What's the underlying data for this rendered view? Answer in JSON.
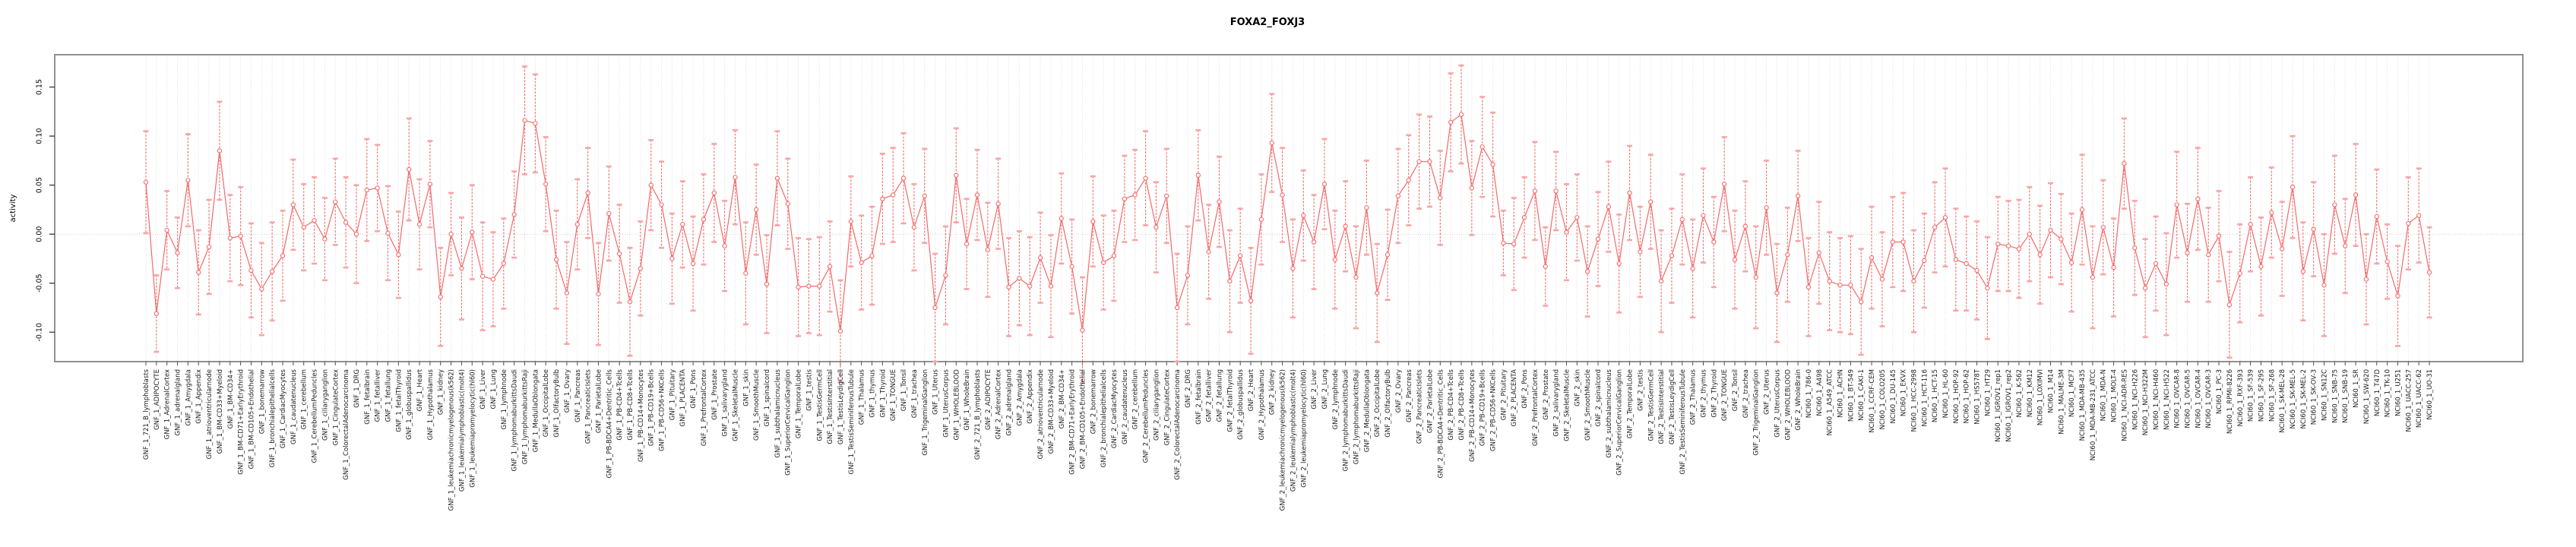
{
  "chart_data": {
    "type": "line",
    "subtype": "point-error-bar-series",
    "title": "FOXA2_FOXJ3",
    "xlabel": "",
    "ylabel": "activity",
    "ylim": [
      -0.13,
      0.183
    ],
    "y_ticks": [
      0.15,
      0.1,
      0.05,
      0.0,
      -0.05,
      -0.1
    ],
    "grid": "vertical dotted gridline at every category, dotted horizontal zero line",
    "legend": "none",
    "colors": {
      "series": "#f46969",
      "error_cap": "#f8a5a5",
      "gridline": "#dedede",
      "zero_line": "#cccccc",
      "frame": "#919191",
      "tick": "#4d4d4d"
    },
    "categories": [
      "GNF_1_721_B_lymphoblasts",
      "GNF_1_ADIPOCYTE",
      "GNF_1_AdrenalCortex",
      "GNF_1_adrenalgland",
      "GNF_1_Amygdala",
      "GNF_1_Appendix",
      "GNF_1_atrioventricularnode",
      "GNF_1_BM-CD33+Myeloid",
      "GNF_1_BM-CD34+",
      "GNF_1_BM-CD71+EarlyErythroid",
      "GNF_1_BM-CD105+Endothelial",
      "GNF_1_bonemarrow",
      "GNF_1_bronchialepithelialcells",
      "GNF_1_CardiacMyocytes",
      "GNF_1_caudatenucleus",
      "GNF_1_cerebellum",
      "GNF_1_CerebellumPeduncles",
      "GNF_1_ciliaryganglion",
      "GNF_1_CingulateCortex",
      "GNF_1_ColorectalAdenocarcinoma",
      "GNF_1_DRG",
      "GNF_1_fetalbrain",
      "GNF_1_fetalliver",
      "GNF_1_fetallung",
      "GNF_1_fetalThyroid",
      "GNF_1_globuspallidus",
      "GNF_1_Heart",
      "GNF_1_Hypothalamus",
      "GNF_1_kidney",
      "GNF_1_leukemiachronicmyelogenous(k562)",
      "GNF_1_leukemialymphoblastic(molt4)",
      "GNF_1_leukemiapromyelocytic(hl60)",
      "GNF_1_Liver",
      "GNF_1_Lung",
      "GNF_1_lymphnode",
      "GNF_1_lymphomaburkittsDaudi",
      "GNF_1_lymphomaburkittsRaji",
      "GNF_1_MedullaOblongata",
      "GNF_1_OccipitalLobe",
      "GNF_1_OlfactoryBulb",
      "GNF_1_Ovary",
      "GNF_1_Pancreas",
      "GNF_1_PancreaticIslets",
      "GNF_1_ParietalLobe",
      "GNF_1_PB-BDCA4+Dentritic_Cells",
      "GNF_1_PB-CD4+Tcells",
      "GNF_1_PB-CD8+Tcells",
      "GNF_1_PB-CD14+Monocytes",
      "GNF_1_PB-CD19+Bcells",
      "GNF_1_PB-CD56+NKCells",
      "GNF_1_Pituitary",
      "GNF_1_PLACENTA",
      "GNF_1_Pons",
      "GNF_1_PrefrontalCortex",
      "GNF_1_Prostate",
      "GNF_1_salivarygland",
      "GNF_1_SkeletalMuscle",
      "GNF_1_skin",
      "GNF_1_SmoothMuscle",
      "GNF_1_spinalcord",
      "GNF_1_subthalamicnucleus",
      "GNF_1_SuperiorCervicalGanglion",
      "GNF_1_TemporalLobe",
      "GNF_1_testis",
      "GNF_1_TestisGermCell",
      "GNF_1_TestisInterstitial",
      "GNF_1_TestisLeydigCell",
      "GNF_1_TestisSeminiferousTubule",
      "GNF_1_Thalamus",
      "GNF_1_thymus",
      "GNF_1_Thyroid",
      "GNF_1_TONGUE",
      "GNF_1_Tonsil",
      "GNF_1_trachea",
      "GNF_1_TrigeminalGanglion",
      "GNF_1_Uterus",
      "GNF_1_UterusCorpus",
      "GNF_1_WHOLEBLOOD",
      "GNF_1_WholeBrain",
      "GNF_2_721_B_lymphoblasts",
      "GNF_2_ADIPOCYTE",
      "GNF_2_AdrenalCortex",
      "GNF_2_adrenalgland",
      "GNF_2_Amygdala",
      "GNF_2_Appendix",
      "GNF_2_atrioventricularnode",
      "GNF_2_BM-CD33+Myeloid",
      "GNF_2_BM-CD34+",
      "GNF_2_BM-CD71+EarlyErythroid",
      "GNF_2_BM-CD105+Endothelial",
      "GNF_2_bonemarrow",
      "GNF_2_bronchialepithelialcells",
      "GNF_2_CardiacMyocytes",
      "GNF_2_caudatenucleus",
      "GNF_2_cerebellum",
      "GNF_2_CerebellumPeduncles",
      "GNF_2_ciliaryganglion",
      "GNF_2_CingulateCortex",
      "GNF_2_ColorectalAdenocarcinoma",
      "GNF_2_DRG",
      "GNF_2_fetalbrain",
      "GNF_2_fetalliver",
      "GNF_2_fetallung",
      "GNF_2_fetalThyroid",
      "GNF_2_globuspallidus",
      "GNF_2_Heart",
      "GNF_2_Hypothalamus",
      "GNF_2_kidney",
      "GNF_2_leukemiachronicmyelogenous(k562)",
      "GNF_2_leukemialymphoblastic(molt4)",
      "GNF_2_leukemiapromyelocytic(hl60)",
      "GNF_2_Liver",
      "GNF_2_Lung",
      "GNF_2_lymphnode",
      "GNF_2_lymphomaburkittsDaudi",
      "GNF_2_lymphomaburkittsRaji",
      "GNF_2_MedullaOblongata",
      "GNF_2_OccipitalLobe",
      "GNF_2_OlfactoryBulb",
      "GNF_2_Ovary",
      "GNF_2_Pancreas",
      "GNF_2_PancreaticIslets",
      "GNF_2_ParietalLobe",
      "GNF_2_PB-BDCA4+Dentritic_Cells",
      "GNF_2_PB-CD4+Tcells",
      "GNF_2_PB-CD8+Tcells",
      "GNF_2_PB-CD14+Monocytes",
      "GNF_2_PB-CD19+Bcells",
      "GNF_2_PB-CD56+NKCells",
      "GNF_2_Pituitary",
      "GNF_2_PLACENTA",
      "GNF_2_Pons",
      "GNF_2_PrefrontalCortex",
      "GNF_2_Prostate",
      "GNF_2_salivarygland",
      "GNF_2_SkeletalMuscle",
      "GNF_2_skin",
      "GNF_2_SmoothMuscle",
      "GNF_2_spinalcord",
      "GNF_2_subthalamicnucleus",
      "GNF_2_SuperiorCervicalGanglion",
      "GNF_2_TemporalLobe",
      "GNF_2_testis",
      "GNF_2_TestisGermCell",
      "GNF_2_TestisInterstitial",
      "GNF_2_TestisLeydigCell",
      "GNF_2_TestisSeminiferousTubule",
      "GNF_2_Thalamus",
      "GNF_2_thymus",
      "GNF_2_Thyroid",
      "GNF_2_TONGUE",
      "GNF_2_Tonsil",
      "GNF_2_trachea",
      "GNF_2_TrigeminalGanglion",
      "GNF_2_Uterus",
      "GNF_2_UterusCorpus",
      "GNF_2_WHOLEBLOOD",
      "GNF_2_WholeBrain",
      "NCI60_1_786-0",
      "NCI60_1_A498",
      "NCI60_1_A549_ATCC",
      "NCI60_1_ACHN",
      "NCI60_1_BT-549",
      "NCI60_1_CAKI-1",
      "NCI60_1_CCRF-CEM",
      "NCI60_1_COLO205",
      "NCI60_1_DU-145",
      "NCI60_1_EKVX",
      "NCI60_1_HCC-2998",
      "NCI60_1_HCT-116",
      "NCI60_1_HCT-15",
      "NCI60_1_HL-60",
      "NCI60_1_HOP-92",
      "NCI60_1_HOP-62",
      "NCI60_1_HS578T",
      "NCI60_1_HT29",
      "NCI60_1_IGROV1_rep1",
      "NCI60_1_IGROV1_rep2",
      "NCI60_1_K-562",
      "NCI60_1_KM12",
      "NCI60_1_LOXIMVI",
      "NCI60_1_M14",
      "NCI60_1_MALME-3M",
      "NCI60_1_MCF7",
      "NCI60_1_MDA-MB-435",
      "NCI60_1_MDA-MB-231_ATCC",
      "NCI60_1_MDA-N",
      "NCI60_1_MOLT-4",
      "NCI60_1_NCI-ADR-RES",
      "NCI60_1_NCI-H226",
      "NCI60_1_NCI-H322M",
      "NCI60_1_NCI-H460",
      "NCI60_1_NCI-H522",
      "NCI60_1_OVCAR-8",
      "NCI60_1_OVCAR-5",
      "NCI60_1_OVCAR-4",
      "NCI60_1_OVCAR-3",
      "NCI60_1_PC-3",
      "NCI60_1_RPMI-8226",
      "NCI60_1_RXF-393",
      "NCI60_1_SF-539",
      "NCI60_1_SF-295",
      "NCI60_1_SF-268",
      "NCI60_1_SK-MEL-28",
      "NCI60_1_SK-MEL-5",
      "NCI60_1_SK-MEL-2",
      "NCI60_1_SK-OV-3",
      "NCI60_1_SN12C",
      "NCI60_1_SNB-75",
      "NCI60_1_SNB-19",
      "NCI60_1_SR",
      "NCI60_1_SW-620",
      "NCI60_1_T47D",
      "NCI60_1_TK-10",
      "NCI60_1_U251",
      "NCI60_1_UACC-257",
      "NCI60_1_UACC-62",
      "NCI60_1_UO-31"
    ],
    "values": [
      0.053,
      -0.081,
      0.004,
      -0.019,
      0.055,
      -0.039,
      -0.013,
      0.085,
      -0.004,
      -0.002,
      -0.037,
      -0.056,
      -0.038,
      -0.022,
      0.03,
      0.007,
      0.014,
      -0.005,
      0.033,
      0.012,
      0.0,
      0.045,
      0.047,
      0.001,
      -0.021,
      0.066,
      0.01,
      0.051,
      -0.064,
      0.0,
      -0.035,
      0.002,
      -0.043,
      -0.046,
      -0.03,
      0.02,
      0.116,
      0.113,
      0.051,
      -0.026,
      -0.06,
      0.01,
      0.042,
      -0.061,
      0.021,
      -0.02,
      -0.069,
      -0.035,
      0.05,
      0.03,
      -0.025,
      0.01,
      -0.03,
      0.015,
      0.042,
      -0.012,
      0.058,
      -0.04,
      0.025,
      -0.051,
      0.057,
      0.031,
      -0.054,
      -0.053,
      -0.053,
      -0.033,
      -0.099,
      0.013,
      -0.029,
      -0.022,
      0.036,
      0.04,
      0.057,
      0.007,
      0.039,
      -0.075,
      -0.042,
      0.06,
      -0.01,
      0.04,
      -0.016,
      0.031,
      -0.054,
      -0.045,
      -0.053,
      -0.024,
      -0.053,
      0.016,
      -0.033,
      -0.098,
      0.013,
      -0.029,
      -0.022,
      0.036,
      0.04,
      0.057,
      0.007,
      0.039,
      -0.075,
      -0.042,
      0.06,
      -0.018,
      0.033,
      -0.048,
      -0.022,
      -0.068,
      0.015,
      0.093,
      0.04,
      -0.035,
      0.019,
      -0.008,
      0.051,
      -0.026,
      0.008,
      -0.044,
      0.027,
      -0.06,
      -0.021,
      0.039,
      0.055,
      0.074,
      0.074,
      0.037,
      0.114,
      0.122,
      0.047,
      0.089,
      0.071,
      -0.009,
      -0.01,
      0.017,
      0.044,
      -0.033,
      0.044,
      0.002,
      0.017,
      -0.038,
      -0.005,
      0.028,
      -0.03,
      0.042,
      -0.018,
      0.033,
      -0.048,
      -0.022,
      0.015,
      -0.035,
      0.019,
      -0.008,
      0.051,
      -0.026,
      0.008,
      -0.044,
      0.027,
      -0.06,
      -0.021,
      0.039,
      -0.054,
      -0.019,
      -0.048,
      -0.052,
      -0.052,
      -0.069,
      -0.024,
      -0.046,
      -0.008,
      -0.008,
      -0.048,
      -0.027,
      0.007,
      0.017,
      -0.026,
      -0.03,
      -0.037,
      -0.055,
      -0.01,
      -0.012,
      -0.015,
      0.0,
      -0.021,
      0.004,
      -0.005,
      -0.029,
      0.025,
      -0.044,
      0.007,
      -0.034,
      0.072,
      -0.014,
      -0.055,
      -0.03,
      -0.051,
      0.03,
      -0.019,
      0.036,
      -0.021,
      -0.002,
      -0.072,
      -0.04,
      0.01,
      -0.033,
      0.022,
      -0.015,
      0.048,
      -0.038,
      0.005,
      -0.052,
      0.03,
      -0.012,
      0.04,
      -0.046,
      0.018,
      -0.028,
      -0.063,
      0.011,
      0.019,
      -0.039
    ],
    "errors": [
      0.052,
      0.039,
      0.04,
      0.036,
      0.047,
      0.043,
      0.048,
      0.05,
      0.044,
      0.05,
      0.048,
      0.047,
      0.05,
      0.046,
      0.046,
      0.044,
      0.044,
      0.042,
      0.044,
      0.046,
      0.05,
      0.052,
      0.044,
      0.048,
      0.044,
      0.052,
      0.046,
      0.044,
      0.05,
      0.042,
      0.052,
      0.048,
      0.055,
      0.048,
      0.046,
      0.044,
      0.055,
      0.05,
      0.048,
      0.05,
      0.052,
      0.046,
      0.046,
      0.052,
      0.048,
      0.05,
      0.055,
      0.048,
      0.046,
      0.044,
      0.046,
      0.044,
      0.048,
      0.046,
      0.05,
      0.046,
      0.048,
      0.052,
      0.046,
      0.05,
      0.048,
      0.046,
      0.05,
      0.048,
      0.05,
      0.046,
      0.052,
      0.046,
      0.048,
      0.05,
      0.046,
      0.048,
      0.046,
      0.044,
      0.048,
      0.055,
      0.05,
      0.048,
      0.046,
      0.046,
      0.048,
      0.046,
      0.05,
      0.048,
      0.05,
      0.046,
      0.052,
      0.046,
      0.048,
      0.054,
      0.046,
      0.048,
      0.046,
      0.044,
      0.046,
      0.048,
      0.046,
      0.048,
      0.055,
      0.05,
      0.046,
      0.048,
      0.046,
      0.052,
      0.048,
      0.054,
      0.046,
      0.05,
      0.048,
      0.05,
      0.046,
      0.048,
      0.046,
      0.05,
      0.046,
      0.052,
      0.048,
      0.05,
      0.046,
      0.048,
      0.046,
      0.048,
      0.046,
      0.048,
      0.05,
      0.05,
      0.048,
      0.051,
      0.053,
      0.033,
      0.047,
      0.041,
      0.05,
      0.04,
      0.04,
      0.049,
      0.044,
      0.046,
      0.048,
      0.046,
      0.05,
      0.048,
      0.046,
      0.048,
      0.052,
      0.048,
      0.046,
      0.05,
      0.048,
      0.046,
      0.048,
      0.05,
      0.046,
      0.052,
      0.048,
      0.05,
      0.048,
      0.046,
      0.05,
      0.052,
      0.05,
      0.048,
      0.05,
      0.054,
      0.052,
      0.048,
      0.046,
      0.05,
      0.052,
      0.048,
      0.046,
      0.05,
      0.052,
      0.048,
      0.05,
      0.052,
      0.048,
      0.046,
      0.05,
      0.048,
      0.05,
      0.048,
      0.046,
      0.05,
      0.056,
      0.052,
      0.048,
      0.05,
      0.046,
      0.048,
      0.05,
      0.048,
      0.052,
      0.054,
      0.05,
      0.052,
      0.048,
      0.046,
      0.054,
      0.05,
      0.048,
      0.05,
      0.046,
      0.048,
      0.052,
      0.05,
      0.048,
      0.052,
      0.05,
      0.048,
      0.052,
      0.046,
      0.048,
      0.038,
      0.051,
      0.047,
      0.048,
      0.046
    ]
  }
}
